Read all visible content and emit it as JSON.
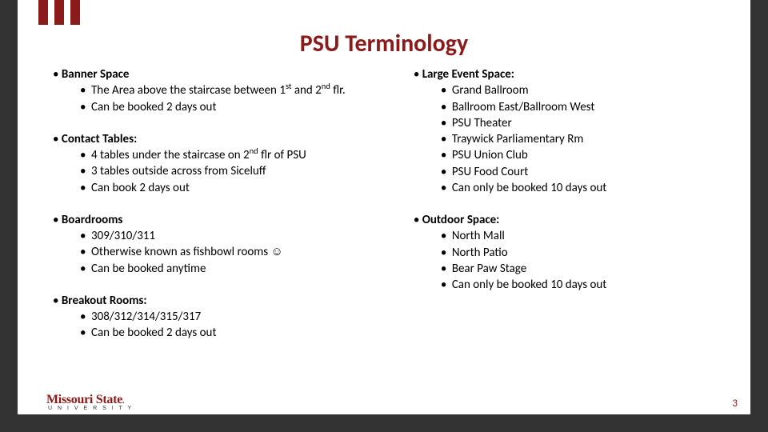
{
  "accent_color": "#8b1a1a",
  "border_color": "#333333",
  "title": "PSU Terminology",
  "left": [
    {
      "heading": "Banner Space",
      "items": [
        "The Area above the staircase between 1<sup>st</sup> and 2<sup>nd</sup> flr.",
        "Can be booked 2 days out"
      ]
    },
    {
      "heading": "Contact Tables:",
      "items": [
        "4 tables under the staircase on 2<sup>nd</sup> flr of PSU",
        "3 tables outside across from Siceluff",
        "Can book 2 days out"
      ]
    },
    {
      "heading": "Boardrooms",
      "items": [
        "309/310/311",
        "Otherwise known as fishbowl rooms  <span class=\"smiley\">☺</span>",
        "Can be booked anytime"
      ]
    },
    {
      "heading": "Breakout Rooms:",
      "items": [
        "308/312/314/315/317",
        "Can be booked 2 days out"
      ]
    }
  ],
  "right": [
    {
      "heading": "Large Event Space:",
      "items": [
        "Grand Ballroom",
        "Ballroom East/Ballroom West",
        "PSU Theater",
        "Traywick Parliamentary Rm",
        "PSU Union Club",
        "PSU Food Court",
        "Can only be booked 10 days out"
      ]
    },
    {
      "heading": "Outdoor Space:",
      "items": [
        "North Mall",
        "North Patio",
        "Bear Paw Stage",
        "Can only be booked 10 days out"
      ]
    }
  ],
  "logo_main": "Missouri State",
  "logo_sub": "U N I V E R S I T Y",
  "page_num": "3"
}
